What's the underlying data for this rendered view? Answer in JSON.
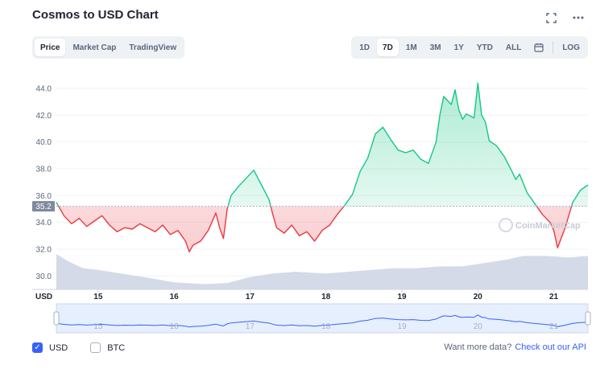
{
  "title": "Cosmos to USD Chart",
  "icons": {
    "fullscreen": "fullscreen-icon",
    "more": "more-icon",
    "calendar": "calendar-icon"
  },
  "left_tabs": [
    {
      "label": "Price",
      "active": true
    },
    {
      "label": "Market Cap",
      "active": false
    },
    {
      "label": "TradingView",
      "active": false
    }
  ],
  "ranges": [
    {
      "label": "1D",
      "active": false
    },
    {
      "label": "7D",
      "active": true
    },
    {
      "label": "1M",
      "active": false
    },
    {
      "label": "3M",
      "active": false
    },
    {
      "label": "1Y",
      "active": false
    },
    {
      "label": "YTD",
      "active": false
    },
    {
      "label": "ALL",
      "active": false
    }
  ],
  "log_label": "LOG",
  "watermark": "CoinMarketCap",
  "footer": {
    "usd_label": "USD",
    "btc_label": "BTC",
    "api_text": "Want more data?",
    "api_link": "Check out our API"
  },
  "colors": {
    "up": "#16c784",
    "down": "#ea3943",
    "accent": "#3861fb",
    "volume": "#cfd6e4"
  },
  "chart_data": {
    "type": "line",
    "reference_value": 35.2,
    "reference_label": "35.2",
    "y_ticks": [
      "44.0",
      "42.0",
      "40.0",
      "38.0",
      "36.0",
      "34.0",
      "32.0",
      "30.0"
    ],
    "ylim": [
      29.0,
      45.5
    ],
    "x_axis_label": "USD",
    "x_ticks": [
      {
        "x": 15,
        "label": "15"
      },
      {
        "x": 16,
        "label": "16"
      },
      {
        "x": 17,
        "label": "17"
      },
      {
        "x": 18,
        "label": "18"
      },
      {
        "x": 19,
        "label": "19"
      },
      {
        "x": 20,
        "label": "20"
      },
      {
        "x": 21,
        "label": "21"
      }
    ],
    "xlim": [
      14.45,
      21.45
    ],
    "series": [
      {
        "x": [
          14.45,
          14.55,
          14.65,
          14.75,
          14.85,
          14.95,
          15.05,
          15.15,
          15.25,
          15.35,
          15.45,
          15.55,
          15.65,
          15.75,
          15.85,
          15.95,
          16.05,
          16.15,
          16.2,
          16.25,
          16.35,
          16.45,
          16.55,
          16.6,
          16.65,
          16.7,
          16.75,
          16.85,
          16.95,
          17.05,
          17.15,
          17.25,
          17.3,
          17.35,
          17.45,
          17.55,
          17.65,
          17.75,
          17.85,
          17.95,
          18.05,
          18.15,
          18.25,
          18.35,
          18.45,
          18.55,
          18.65,
          18.75,
          18.85,
          18.95,
          19.05,
          19.15,
          19.25,
          19.35,
          19.45,
          19.5,
          19.55,
          19.65,
          19.7,
          19.75,
          19.8,
          19.85,
          19.95,
          20.0,
          20.05,
          20.1,
          20.15,
          20.25,
          20.35,
          20.45,
          20.5,
          20.55,
          20.65,
          20.75,
          20.85,
          20.95,
          21.0,
          21.05,
          21.15,
          21.25,
          21.35,
          21.45
        ],
        "values": [
          35.5,
          34.5,
          33.9,
          34.3,
          33.7,
          34.1,
          34.5,
          33.8,
          33.3,
          33.6,
          33.5,
          33.9,
          33.6,
          33.3,
          33.8,
          33.1,
          33.4,
          32.6,
          31.8,
          32.3,
          32.6,
          33.4,
          34.7,
          33.6,
          32.8,
          35.0,
          36.0,
          36.7,
          37.3,
          37.9,
          36.8,
          35.7,
          34.6,
          33.6,
          33.2,
          33.8,
          33.0,
          33.3,
          32.6,
          33.4,
          33.8,
          34.6,
          35.3,
          36.1,
          37.8,
          38.8,
          40.6,
          41.1,
          40.2,
          39.4,
          39.2,
          39.4,
          38.7,
          38.4,
          40.0,
          42.0,
          43.4,
          42.8,
          43.9,
          42.4,
          41.7,
          42.1,
          41.8,
          44.4,
          42.0,
          41.5,
          40.1,
          39.7,
          38.9,
          37.8,
          37.2,
          37.6,
          36.2,
          35.4,
          34.6,
          34.0,
          33.4,
          32.1,
          33.6,
          35.5,
          36.4,
          36.8
        ]
      }
    ],
    "volume": {
      "x": [
        14.45,
        14.6,
        14.8,
        15.0,
        15.3,
        15.6,
        16.0,
        16.4,
        16.7,
        17.0,
        17.3,
        17.6,
        18.0,
        18.3,
        18.6,
        18.9,
        19.2,
        19.5,
        19.8,
        20.1,
        20.4,
        20.6,
        20.9,
        21.2,
        21.45
      ],
      "values": [
        1.0,
        0.8,
        0.6,
        0.55,
        0.45,
        0.35,
        0.2,
        0.15,
        0.18,
        0.35,
        0.45,
        0.5,
        0.45,
        0.5,
        0.55,
        0.6,
        0.6,
        0.65,
        0.65,
        0.75,
        0.85,
        0.95,
        0.95,
        0.9,
        0.95
      ]
    }
  }
}
